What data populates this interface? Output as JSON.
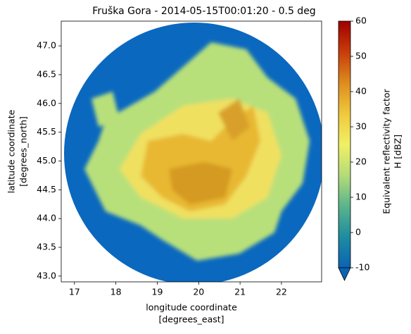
{
  "chart_data": {
    "type": "radar-ppi",
    "title": "Fruška Gora - 2014-05-15T00:01:20 - 0.5 deg",
    "x_label": [
      "longitude coordinate",
      "[degrees_east]"
    ],
    "y_label": [
      "latitude coordinate",
      "[degrees_north]"
    ],
    "xlim": [
      16.68,
      22.97
    ],
    "xticks": [
      17,
      18,
      19,
      20,
      21,
      22
    ],
    "ylim": [
      42.9,
      47.43
    ],
    "yticks": [
      {
        "value": 43,
        "label": "43.0"
      },
      43.5,
      {
        "value": 44,
        "label": "44.0"
      },
      44.5,
      {
        "value": 45,
        "label": "45.0"
      },
      45.5,
      {
        "value": 46,
        "label": "46.0"
      },
      46.5,
      {
        "value": 47,
        "label": "47.0"
      }
    ],
    "colorbar": {
      "label": [
        "Equivalent reflectivity factor",
        "H [dBZ]"
      ],
      "lim": [
        -10,
        60
      ],
      "ticks": [
        -10,
        0,
        10,
        20,
        30,
        40,
        50,
        60
      ],
      "colors": [
        "#0a64b4",
        "#1e8ca0",
        "#5ab48c",
        "#b4dc78",
        "#f0f064",
        "#f0c83c",
        "#dc8c1e",
        "#c83c0a",
        "#a00000"
      ]
    }
  }
}
